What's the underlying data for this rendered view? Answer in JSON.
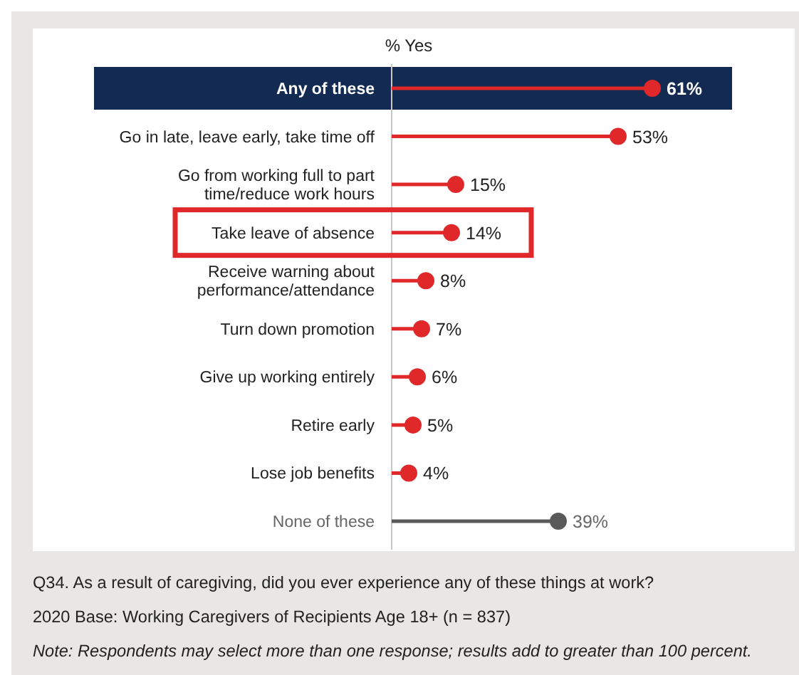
{
  "chart_data": {
    "type": "lollipop",
    "orientation": "horizontal",
    "xlabel": "% Yes",
    "categories": [
      "Any of these",
      "Go in late, leave early, take time off",
      "Go from working full to part time/reduce work hours",
      "Take leave of absence",
      "Receive warning about performance/attendance",
      "Turn down promotion",
      "Give up working entirely",
      "Retire early",
      "Lose job benefits",
      "None of these"
    ],
    "values": [
      61,
      53,
      15,
      14,
      8,
      7,
      6,
      5,
      4,
      39
    ],
    "value_labels": [
      "61%",
      "53%",
      "15%",
      "14%",
      "8%",
      "7%",
      "6%",
      "5%",
      "4%",
      "39%"
    ],
    "colors": [
      "#e0282a",
      "#e0282a",
      "#e0282a",
      "#e0282a",
      "#e0282a",
      "#e0282a",
      "#e0282a",
      "#e0282a",
      "#e0282a",
      "#595959"
    ],
    "bands": [
      {
        "axis": "y",
        "from": "Any of these",
        "to": "Any of these",
        "color": "#132b52"
      }
    ],
    "annotations": [
      "Q34.  As a result of caregiving, did you ever experience any of these things at work?",
      "2020 Base: Working Caregivers of Recipients Age 18+ (n = 837)",
      "Note: Respondents may select more than one response; results add to greater than 100 percent."
    ]
  }
}
